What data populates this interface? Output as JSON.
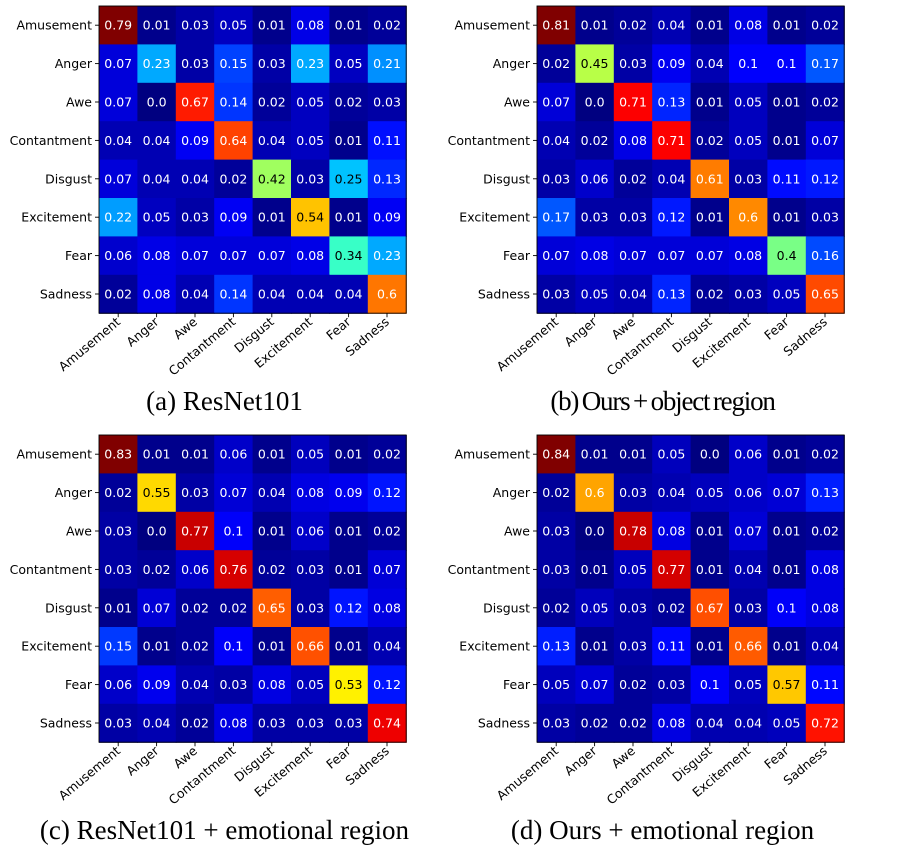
{
  "chart_data": [
    {
      "type": "heatmap",
      "caption": "(a) ResNet101",
      "row_labels": [
        "Amusement",
        "Anger",
        "Awe",
        "Contantment",
        "Disgust",
        "Excitement",
        "Fear",
        "Sadness"
      ],
      "col_labels": [
        "Amusement",
        "Anger",
        "Awe",
        "Contantment",
        "Disgust",
        "Excitement",
        "Fear",
        "Sadness"
      ],
      "colormap": "jet",
      "values": [
        [
          "0.79",
          "0.01",
          "0.03",
          "0.05",
          "0.01",
          "0.08",
          "0.01",
          "0.02"
        ],
        [
          "0.07",
          "0.23",
          "0.03",
          "0.15",
          "0.03",
          "0.23",
          "0.05",
          "0.21"
        ],
        [
          "0.07",
          "0.0",
          "0.67",
          "0.14",
          "0.02",
          "0.05",
          "0.02",
          "0.03"
        ],
        [
          "0.04",
          "0.04",
          "0.09",
          "0.64",
          "0.04",
          "0.05",
          "0.01",
          "0.11"
        ],
        [
          "0.07",
          "0.04",
          "0.04",
          "0.02",
          "0.42",
          "0.03",
          "0.25",
          "0.13"
        ],
        [
          "0.22",
          "0.05",
          "0.03",
          "0.09",
          "0.01",
          "0.54",
          "0.01",
          "0.09"
        ],
        [
          "0.06",
          "0.08",
          "0.07",
          "0.07",
          "0.07",
          "0.08",
          "0.34",
          "0.23"
        ],
        [
          "0.02",
          "0.08",
          "0.04",
          "0.14",
          "0.04",
          "0.04",
          "0.04",
          "0.6"
        ]
      ]
    },
    {
      "type": "heatmap",
      "caption": "(b) Ours + object region",
      "row_labels": [
        "Amusement",
        "Anger",
        "Awe",
        "Contantment",
        "Disgust",
        "Excitement",
        "Fear",
        "Sadness"
      ],
      "col_labels": [
        "Amusement",
        "Anger",
        "Awe",
        "Contantment",
        "Disgust",
        "Excitement",
        "Fear",
        "Sadness"
      ],
      "colormap": "jet",
      "values": [
        [
          "0.81",
          "0.01",
          "0.02",
          "0.04",
          "0.01",
          "0.08",
          "0.01",
          "0.02"
        ],
        [
          "0.02",
          "0.45",
          "0.03",
          "0.09",
          "0.04",
          "0.1",
          "0.1",
          "0.17"
        ],
        [
          "0.07",
          "0.0",
          "0.71",
          "0.13",
          "0.01",
          "0.05",
          "0.01",
          "0.02"
        ],
        [
          "0.04",
          "0.02",
          "0.08",
          "0.71",
          "0.02",
          "0.05",
          "0.01",
          "0.07"
        ],
        [
          "0.03",
          "0.06",
          "0.02",
          "0.04",
          "0.61",
          "0.03",
          "0.11",
          "0.12"
        ],
        [
          "0.17",
          "0.03",
          "0.03",
          "0.12",
          "0.01",
          "0.6",
          "0.01",
          "0.03"
        ],
        [
          "0.07",
          "0.08",
          "0.07",
          "0.07",
          "0.07",
          "0.08",
          "0.4",
          "0.16"
        ],
        [
          "0.03",
          "0.05",
          "0.04",
          "0.13",
          "0.02",
          "0.03",
          "0.05",
          "0.65"
        ]
      ]
    },
    {
      "type": "heatmap",
      "caption": "(c) ResNet101 + emotional region",
      "row_labels": [
        "Amusement",
        "Anger",
        "Awe",
        "Contantment",
        "Disgust",
        "Excitement",
        "Fear",
        "Sadness"
      ],
      "col_labels": [
        "Amusement",
        "Anger",
        "Awe",
        "Contantment",
        "Disgust",
        "Excitement",
        "Fear",
        "Sadness"
      ],
      "colormap": "jet",
      "values": [
        [
          "0.83",
          "0.01",
          "0.01",
          "0.06",
          "0.01",
          "0.05",
          "0.01",
          "0.02"
        ],
        [
          "0.02",
          "0.55",
          "0.03",
          "0.07",
          "0.04",
          "0.08",
          "0.09",
          "0.12"
        ],
        [
          "0.03",
          "0.0",
          "0.77",
          "0.1",
          "0.01",
          "0.06",
          "0.01",
          "0.02"
        ],
        [
          "0.03",
          "0.02",
          "0.06",
          "0.76",
          "0.02",
          "0.03",
          "0.01",
          "0.07"
        ],
        [
          "0.01",
          "0.07",
          "0.02",
          "0.02",
          "0.65",
          "0.03",
          "0.12",
          "0.08"
        ],
        [
          "0.15",
          "0.01",
          "0.02",
          "0.1",
          "0.01",
          "0.66",
          "0.01",
          "0.04"
        ],
        [
          "0.06",
          "0.09",
          "0.04",
          "0.03",
          "0.08",
          "0.05",
          "0.53",
          "0.12"
        ],
        [
          "0.03",
          "0.04",
          "0.02",
          "0.08",
          "0.03",
          "0.03",
          "0.03",
          "0.74"
        ]
      ]
    },
    {
      "type": "heatmap",
      "caption": "(d) Ours + emotional region",
      "row_labels": [
        "Amusement",
        "Anger",
        "Awe",
        "Contantment",
        "Disgust",
        "Excitement",
        "Fear",
        "Sadness"
      ],
      "col_labels": [
        "Amusement",
        "Anger",
        "Awe",
        "Contantment",
        "Disgust",
        "Excitement",
        "Fear",
        "Sadness"
      ],
      "colormap": "jet",
      "values": [
        [
          "0.84",
          "0.01",
          "0.01",
          "0.05",
          "0.0",
          "0.06",
          "0.01",
          "0.02"
        ],
        [
          "0.02",
          "0.6",
          "0.03",
          "0.04",
          "0.05",
          "0.06",
          "0.07",
          "0.13"
        ],
        [
          "0.03",
          "0.0",
          "0.78",
          "0.08",
          "0.01",
          "0.07",
          "0.01",
          "0.02"
        ],
        [
          "0.03",
          "0.01",
          "0.05",
          "0.77",
          "0.01",
          "0.04",
          "0.01",
          "0.08"
        ],
        [
          "0.02",
          "0.05",
          "0.03",
          "0.02",
          "0.67",
          "0.03",
          "0.1",
          "0.08"
        ],
        [
          "0.13",
          "0.01",
          "0.03",
          "0.11",
          "0.01",
          "0.66",
          "0.01",
          "0.04"
        ],
        [
          "0.05",
          "0.07",
          "0.02",
          "0.03",
          "0.1",
          "0.05",
          "0.57",
          "0.11"
        ],
        [
          "0.03",
          "0.02",
          "0.02",
          "0.08",
          "0.04",
          "0.04",
          "0.05",
          "0.72"
        ]
      ]
    }
  ]
}
